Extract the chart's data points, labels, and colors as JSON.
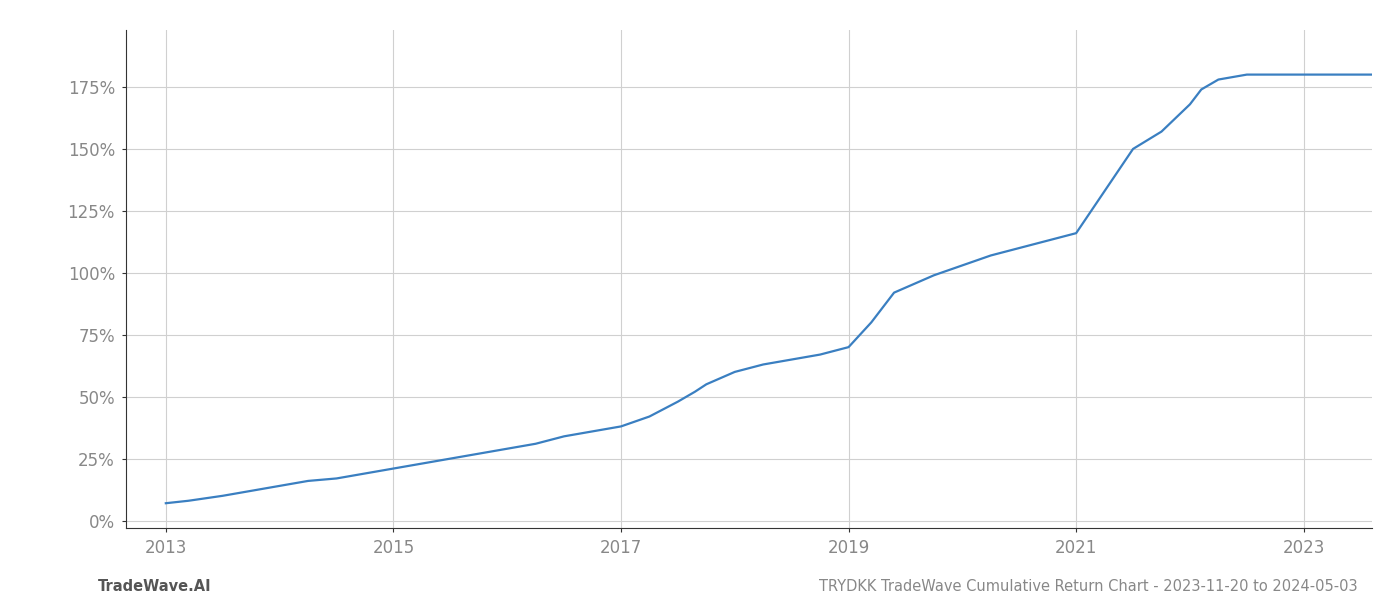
{
  "title": "TRYDKK TradeWave Cumulative Return Chart - 2023-11-20 to 2024-05-03",
  "footer_left": "TradeWave.AI",
  "line_color": "#3a7fc1",
  "background_color": "#ffffff",
  "grid_color": "#d0d0d0",
  "x_data": [
    2013.0,
    2013.2,
    2013.5,
    2013.75,
    2014.0,
    2014.25,
    2014.5,
    2014.75,
    2015.0,
    2015.25,
    2015.5,
    2015.75,
    2016.0,
    2016.25,
    2016.5,
    2016.75,
    2017.0,
    2017.25,
    2017.5,
    2017.65,
    2017.75,
    2018.0,
    2018.25,
    2018.5,
    2018.75,
    2019.0,
    2019.2,
    2019.4,
    2019.6,
    2019.75,
    2020.0,
    2020.25,
    2020.5,
    2020.75,
    2021.0,
    2021.25,
    2021.5,
    2021.75,
    2022.0,
    2022.1,
    2022.25,
    2022.5,
    2022.75,
    2023.0,
    2023.25,
    2023.5,
    2023.75,
    2024.0
  ],
  "y_data": [
    7,
    8,
    10,
    12,
    14,
    16,
    17,
    19,
    21,
    23,
    25,
    27,
    29,
    31,
    34,
    36,
    38,
    42,
    48,
    52,
    55,
    60,
    63,
    65,
    67,
    70,
    80,
    92,
    96,
    99,
    103,
    107,
    110,
    113,
    116,
    133,
    150,
    157,
    168,
    174,
    178,
    180,
    180,
    180,
    180,
    180,
    180,
    180
  ],
  "xlim": [
    2012.65,
    2023.6
  ],
  "ylim": [
    -3,
    198
  ],
  "xticks": [
    2013,
    2015,
    2017,
    2019,
    2021,
    2023
  ],
  "yticks": [
    0,
    25,
    50,
    75,
    100,
    125,
    150,
    175
  ],
  "ytick_labels": [
    "0%",
    "25%",
    "50%",
    "75%",
    "100%",
    "125%",
    "150%",
    "175%"
  ],
  "title_fontsize": 10.5,
  "footer_fontsize": 10.5,
  "axis_fontsize": 12,
  "line_width": 1.6
}
